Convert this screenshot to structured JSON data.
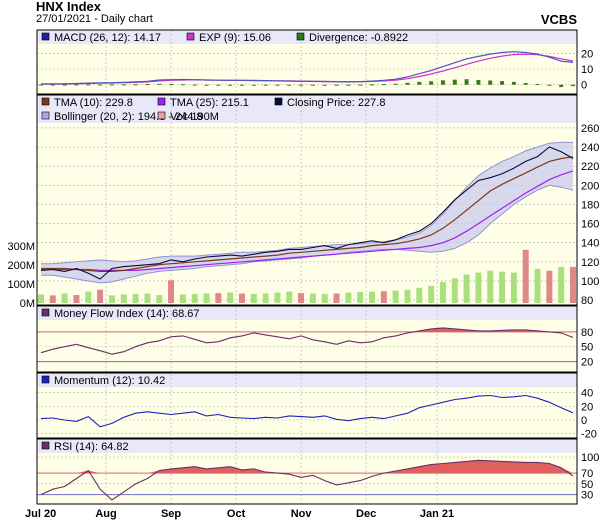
{
  "header": {
    "title": "HNX Index",
    "subtitle": "27/01/2021 - Daily chart",
    "brand": "VCBS"
  },
  "colors": {
    "panel_bg": "#ffffe8",
    "legend_bg": "#e8e8f8",
    "grid": "#b0b0b0",
    "tma10": "#7a3a1a",
    "tma25": "#a020f0",
    "close": "#0a0a3a",
    "bollinger_fill": "#c8c8f0",
    "bollinger_line": "#9090d8",
    "vol_up": "#a8e080",
    "vol_down": "#e08888",
    "mfi_line": "#6b2d6b",
    "mfi_fill": "#e06060",
    "momentum_line": "#2020c0",
    "rsi_line": "#6b2d6b",
    "rsi_fill": "#e06060",
    "macd_line": "#5050c8",
    "exp_line": "#d030d0",
    "div_bar": "#3a7a1a",
    "ref_line": "#e06060"
  },
  "x_axis": {
    "labels": [
      "Jul 20",
      "Aug",
      "Sep",
      "Oct",
      "Nov",
      "Dec",
      "Jan 21"
    ]
  },
  "chart_data": [
    {
      "type": "line",
      "panel": "macd",
      "legend": [
        "MACD (26, 12): 14.17",
        "EXP (9): 15.06",
        "Divergence: -0.8922"
      ],
      "legend_colors": [
        "#2020a0",
        "#d030d0",
        "#2a7a1a"
      ],
      "yticks": [
        "20",
        "10",
        "0"
      ],
      "ylim": [
        -4,
        24
      ],
      "series": [
        {
          "name": "MACD",
          "values": [
            0.5,
            0.5,
            0.6,
            0.8,
            1.0,
            1.2,
            1.3,
            1.5,
            1.8,
            2.2,
            3.0,
            3.2,
            3.3,
            3.2,
            3.0,
            2.9,
            2.8,
            2.8,
            2.7,
            2.6,
            2.4,
            2.3,
            2.2,
            2.1,
            2.0,
            1.9,
            1.8,
            2.0,
            2.3,
            2.8,
            3.5,
            5.0,
            7.0,
            9.0,
            11.5,
            14.0,
            16.5,
            18.0,
            19.5,
            20.5,
            21.0,
            20.5,
            19.5,
            17.5,
            15.0,
            14.2
          ]
        },
        {
          "name": "EXP",
          "values": [
            0.4,
            0.4,
            0.5,
            0.6,
            0.8,
            1.0,
            1.1,
            1.3,
            1.5,
            1.8,
            2.4,
            2.8,
            3.0,
            3.1,
            3.0,
            2.9,
            2.8,
            2.8,
            2.7,
            2.6,
            2.5,
            2.4,
            2.3,
            2.2,
            2.1,
            2.0,
            1.9,
            1.9,
            2.1,
            2.4,
            2.9,
            3.8,
            5.2,
            6.8,
            8.7,
            10.8,
            13.0,
            15.0,
            16.8,
            18.2,
            19.2,
            19.4,
            19.1,
            18.0,
            16.5,
            15.1
          ]
        },
        {
          "name": "Divergence",
          "values": [
            0.1,
            0.1,
            0.1,
            0.2,
            0.2,
            0.2,
            0.2,
            0.2,
            0.3,
            0.4,
            0.6,
            0.4,
            0.3,
            0.1,
            0.0,
            0.0,
            0.0,
            0.0,
            0.0,
            0.0,
            -0.1,
            -0.1,
            -0.1,
            -0.1,
            -0.1,
            -0.1,
            -0.1,
            0.1,
            0.2,
            0.4,
            0.6,
            1.2,
            1.8,
            2.2,
            2.8,
            3.2,
            3.5,
            3.0,
            2.7,
            2.3,
            1.8,
            1.1,
            0.4,
            -0.5,
            -1.5,
            -0.9
          ]
        }
      ]
    },
    {
      "type": "line",
      "panel": "price",
      "legend": [
        "TMA (10): 229.8",
        "TMA (25): 215.1",
        "Closing Price: 227.8",
        "Bollinger (20, 2): 194.8 - 244.8",
        "Vol: 190M"
      ],
      "legend_colors": [
        "#7a3a1a",
        "#a020f0",
        "#0a0a3a",
        "#a8a8e8",
        "#e8a0a0"
      ],
      "yticks": [
        "260",
        "240",
        "220",
        "200",
        "180",
        "160",
        "140",
        "120",
        "100",
        "80"
      ],
      "ylim": [
        78,
        262
      ],
      "series": [
        {
          "name": "Closing Price",
          "values": [
            111,
            112,
            110,
            113,
            108,
            102,
            113,
            115,
            116,
            117,
            118,
            122,
            120,
            123,
            125,
            126,
            127,
            126,
            128,
            130,
            131,
            133,
            133,
            135,
            137,
            134,
            138,
            140,
            142,
            140,
            143,
            148,
            152,
            160,
            172,
            185,
            195,
            205,
            208,
            212,
            218,
            225,
            230,
            240,
            235,
            228
          ]
        },
        {
          "name": "TMA (10)",
          "values": [
            113,
            113,
            113,
            112,
            111,
            110,
            110,
            111,
            113,
            115,
            117,
            118,
            119,
            120,
            121,
            122,
            123,
            124,
            125,
            126,
            127,
            129,
            130,
            131,
            132,
            133,
            134,
            135,
            137,
            138,
            139,
            141,
            144,
            148,
            155,
            164,
            174,
            184,
            194,
            201,
            207,
            213,
            219,
            225,
            228,
            229.8
          ]
        },
        {
          "name": "TMA (25)",
          "values": [
            112,
            112,
            112,
            112,
            112,
            111,
            111,
            111,
            111,
            112,
            113,
            114,
            115,
            116,
            117,
            118,
            119,
            120,
            121,
            122,
            123,
            124,
            125,
            126,
            127,
            128,
            129,
            130,
            131,
            132,
            133,
            134,
            135,
            137,
            140,
            145,
            152,
            160,
            168,
            176,
            184,
            192,
            199,
            206,
            211,
            215.1
          ]
        },
        {
          "name": "Bollinger Upper",
          "values": [
            118,
            118,
            119,
            120,
            121,
            122,
            121,
            120,
            121,
            123,
            125,
            126,
            126,
            126,
            127,
            128,
            129,
            130,
            130,
            131,
            132,
            134,
            135,
            136,
            137,
            138,
            138,
            139,
            140,
            141,
            143,
            146,
            150,
            158,
            170,
            184,
            198,
            210,
            218,
            225,
            230,
            236,
            240,
            244,
            245,
            244.8
          ]
        },
        {
          "name": "Bollinger Lower",
          "values": [
            106,
            106,
            104,
            102,
            100,
            98,
            99,
            102,
            105,
            108,
            110,
            111,
            112,
            113,
            115,
            116,
            117,
            118,
            120,
            121,
            122,
            123,
            124,
            126,
            127,
            128,
            130,
            131,
            132,
            133,
            133,
            132,
            131,
            130,
            131,
            134,
            140,
            148,
            160,
            170,
            180,
            188,
            195,
            200,
            198,
            194.8
          ]
        }
      ]
    },
    {
      "type": "bar",
      "panel": "volume",
      "yticks": [
        "300M",
        "200M",
        "100M",
        "0M"
      ],
      "ylim": [
        0,
        300
      ],
      "values": [
        45,
        40,
        50,
        42,
        60,
        70,
        40,
        45,
        48,
        50,
        42,
        120,
        45,
        48,
        50,
        52,
        55,
        50,
        48,
        50,
        55,
        60,
        52,
        50,
        48,
        50,
        55,
        58,
        60,
        62,
        65,
        70,
        80,
        90,
        110,
        130,
        150,
        160,
        170,
        165,
        160,
        280,
        180,
        170,
        190,
        190
      ],
      "up": [
        1,
        0,
        1,
        0,
        1,
        0,
        1,
        1,
        1,
        1,
        1,
        0,
        1,
        1,
        1,
        0,
        1,
        0,
        1,
        1,
        1,
        1,
        0,
        1,
        1,
        0,
        1,
        1,
        1,
        0,
        1,
        1,
        1,
        1,
        1,
        1,
        1,
        1,
        1,
        1,
        1,
        0,
        1,
        0,
        1,
        0
      ]
    },
    {
      "type": "area",
      "panel": "mfi",
      "legend": [
        "Money Flow Index (14): 68.67"
      ],
      "legend_colors": [
        "#6b2d6b"
      ],
      "yticks": [
        "80",
        "50",
        "20"
      ],
      "ylim": [
        5,
        98
      ],
      "ref": [
        80,
        20
      ],
      "values": [
        38,
        45,
        50,
        55,
        48,
        42,
        35,
        40,
        50,
        58,
        62,
        70,
        72,
        65,
        58,
        60,
        68,
        72,
        78,
        74,
        70,
        66,
        72,
        64,
        60,
        55,
        62,
        58,
        60,
        68,
        72,
        78,
        82,
        86,
        88,
        86,
        84,
        82,
        82,
        83,
        84,
        84,
        82,
        80,
        78,
        68.7
      ]
    },
    {
      "type": "line",
      "panel": "momentum",
      "legend": [
        "Momentum (12): 10.42"
      ],
      "legend_colors": [
        "#2020c0"
      ],
      "yticks": [
        "40",
        "20",
        "0",
        "-20"
      ],
      "ylim": [
        -22,
        44
      ],
      "values": [
        2,
        3,
        0,
        -2,
        5,
        -10,
        -5,
        4,
        10,
        12,
        10,
        8,
        10,
        12,
        6,
        8,
        4,
        3,
        2,
        4,
        3,
        6,
        5,
        4,
        6,
        1,
        -1,
        2,
        4,
        2,
        6,
        10,
        18,
        22,
        26,
        30,
        32,
        35,
        36,
        33,
        34,
        36,
        32,
        26,
        18,
        10.4
      ]
    },
    {
      "type": "area",
      "panel": "rsi",
      "legend": [
        "RSI (14): 64.82"
      ],
      "legend_colors": [
        "#6b2d6b"
      ],
      "yticks": [
        "100",
        "70",
        "50",
        "30"
      ],
      "ylim": [
        18,
        102
      ],
      "ref": [
        70,
        30
      ],
      "values": [
        30,
        40,
        45,
        60,
        75,
        40,
        20,
        35,
        50,
        60,
        75,
        78,
        80,
        82,
        78,
        80,
        82,
        76,
        78,
        72,
        70,
        68,
        62,
        66,
        56,
        48,
        52,
        56,
        64,
        70,
        74,
        78,
        82,
        86,
        88,
        90,
        92,
        94,
        93,
        92,
        91,
        90,
        90,
        88,
        80,
        64.8
      ]
    }
  ]
}
